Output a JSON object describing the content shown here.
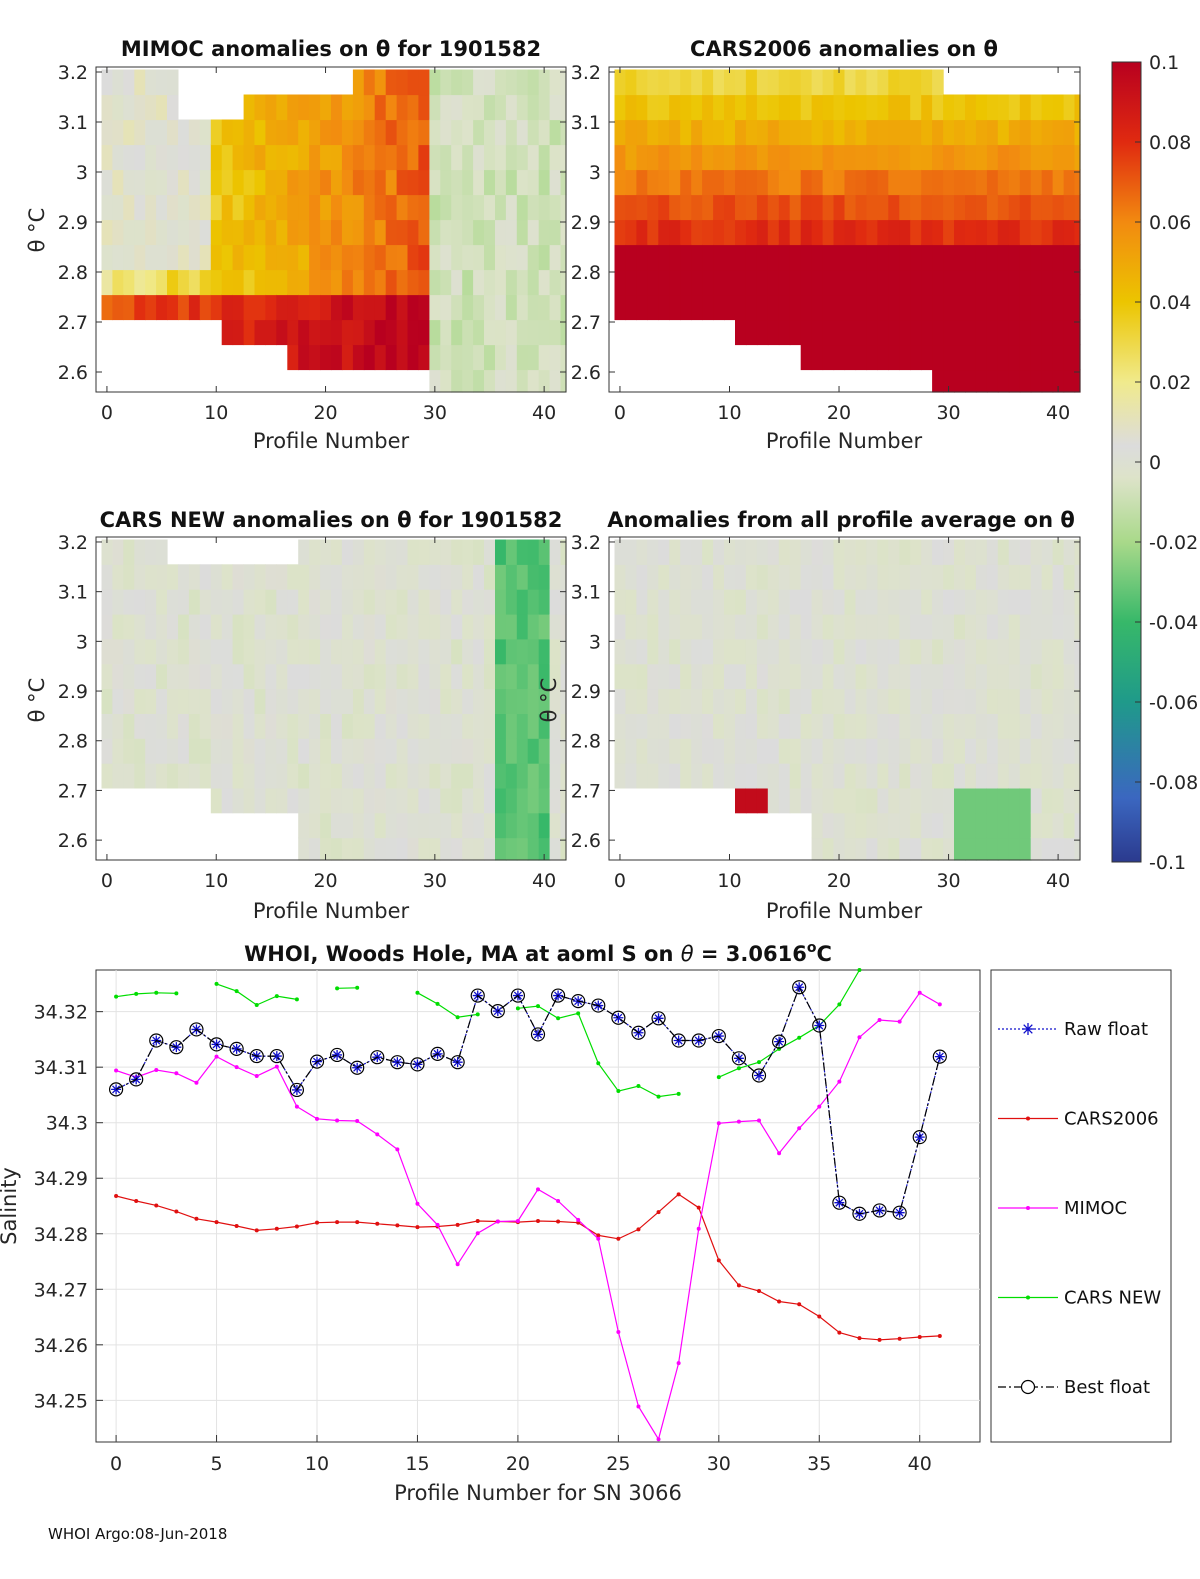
{
  "colorbar": {
    "ticks": [
      "0.1",
      "0.08",
      "0.06",
      "0.04",
      "0.02",
      "0",
      "-0.02",
      "-0.04",
      "-0.06",
      "-0.08",
      "-0.1"
    ],
    "range": [
      -0.1,
      0.1
    ]
  },
  "footer": "WHOI Argo:08-Jun-2018",
  "chart_data": [
    {
      "type": "heatmap",
      "title": "MIMOC anomalies on θ  for 1901582",
      "xlabel": "Profile Number",
      "ylabel": "θ °C",
      "xlim": [
        -1,
        42
      ],
      "ylim": [
        2.56,
        3.21
      ],
      "x_ticks": [
        0,
        10,
        20,
        30,
        40
      ],
      "y_ticks": [
        2.6,
        2.7,
        2.8,
        2.9,
        3,
        3.1,
        3.2
      ],
      "y_ticklabels": [
        "2.6",
        "2.7",
        "2.8",
        "2.9",
        "3",
        "3.1",
        "3.2"
      ],
      "note": "warm (positive) anomalies for profiles 0-29, near zero/slightly negative for 30-42"
    },
    {
      "type": "heatmap",
      "title": "CARS2006 anomalies on θ",
      "xlabel": "Profile Number",
      "ylabel": "",
      "xlim": [
        -1,
        42
      ],
      "ylim": [
        2.56,
        3.21
      ],
      "x_ticks": [
        0,
        10,
        20,
        30,
        40
      ],
      "y_ticks": [
        2.6,
        2.7,
        2.8,
        2.9,
        3,
        3.1,
        3.2
      ],
      "y_ticklabels": [
        "2.6",
        "2.7",
        "2.8",
        "2.9",
        "3",
        "3.1",
        "3.2"
      ],
      "note": "strong positive anomalies increasing toward lower θ"
    },
    {
      "type": "heatmap",
      "title": "CARS NEW anomalies on θ for 1901582",
      "xlabel": "Profile Number",
      "ylabel": "θ °C",
      "xlim": [
        -1,
        42
      ],
      "ylim": [
        2.56,
        3.21
      ],
      "x_ticks": [
        0,
        10,
        20,
        30,
        40
      ],
      "y_ticks": [
        2.6,
        2.7,
        2.8,
        2.9,
        3,
        3.1,
        3.2
      ],
      "y_ticklabels": [
        "2.6",
        "2.7",
        "2.8",
        "2.9",
        "3",
        "3.1",
        "3.2"
      ],
      "note": "near-zero anomalies, negative at profiles 36-41"
    },
    {
      "type": "heatmap",
      "title": "Anomalies from all profile average on θ",
      "xlabel": "Profile Number",
      "ylabel": "θ °C",
      "xlim": [
        -1,
        42
      ],
      "ylim": [
        2.56,
        3.21
      ],
      "x_ticks": [
        0,
        10,
        20,
        30,
        40
      ],
      "y_ticks": [
        2.6,
        2.7,
        2.8,
        2.9,
        3,
        3.1,
        3.2
      ],
      "y_ticklabels": [
        "2.6",
        "2.7",
        "2.8",
        "2.9",
        "3",
        "3.1",
        "3.2"
      ],
      "note": "mostly near zero"
    },
    {
      "type": "line",
      "title_prefix": "WHOI, Woods Hole, MA at aoml S on ",
      "title_theta": "θ",
      "title_value": " = 3.0616",
      "title_sup": "o",
      "title_unit": "C",
      "xlabel": "Profile Number for SN 3066",
      "ylabel": "Salinity",
      "xlim": [
        -1,
        43
      ],
      "ylim": [
        34.2425,
        34.3275
      ],
      "x_ticks": [
        0,
        5,
        10,
        15,
        20,
        25,
        30,
        35,
        40
      ],
      "y_ticks": [
        34.25,
        34.26,
        34.27,
        34.28,
        34.29,
        34.3,
        34.31,
        34.32
      ],
      "y_ticklabels": [
        "34.25",
        "34.26",
        "34.27",
        "34.28",
        "34.29",
        "34.3",
        "34.31",
        "34.32"
      ],
      "series": [
        {
          "name": "Raw float",
          "color": "#1010cc",
          "values": [
            34.306,
            34.3078,
            34.3148,
            34.3136,
            34.3168,
            34.3141,
            34.3133,
            34.312,
            34.312,
            34.3059,
            34.311,
            34.3122,
            34.3099,
            34.3118,
            34.3109,
            34.3105,
            34.3124,
            34.3109,
            34.3229,
            34.3201,
            34.3229,
            34.3159,
            34.3229,
            34.3219,
            34.3211,
            34.3189,
            34.3162,
            34.3188,
            34.3148,
            34.3148,
            34.3156,
            34.3116,
            34.3085,
            34.3146,
            34.3244,
            34.3175,
            34.2856,
            34.2836,
            34.2842,
            34.2838,
            34.2974,
            34.3119
          ]
        },
        {
          "name": "CARS2006",
          "color": "#e01010",
          "values": [
            34.2868,
            34.2859,
            34.2851,
            34.284,
            34.2827,
            34.2821,
            34.2814,
            34.2806,
            34.2809,
            34.2813,
            34.282,
            34.2821,
            34.2821,
            34.2818,
            34.2815,
            34.2812,
            34.2813,
            34.2816,
            34.2823,
            34.2822,
            34.2821,
            34.2823,
            34.2822,
            34.282,
            34.2797,
            34.2791,
            34.2808,
            34.2839,
            34.2871,
            34.2847,
            34.2752,
            34.2707,
            34.2697,
            34.2678,
            34.2673,
            34.2651,
            34.2622,
            34.2612,
            34.2609,
            34.2611,
            34.2614,
            34.2616
          ]
        },
        {
          "name": "MIMOC",
          "color": "#ff00ff",
          "values": [
            34.3094,
            34.3082,
            34.3095,
            34.3089,
            34.3072,
            34.3119,
            34.31,
            34.3084,
            34.3101,
            34.3029,
            34.3007,
            34.3004,
            34.3003,
            34.2979,
            34.2952,
            34.2854,
            34.2816,
            34.2745,
            34.2801,
            34.2822,
            34.2823,
            34.288,
            34.2859,
            34.2825,
            34.2791,
            34.2623,
            34.2489,
            34.243,
            34.2567,
            34.2809,
            34.2999,
            34.3002,
            34.3004,
            34.2945,
            34.299,
            34.3029,
            34.3074,
            34.3154,
            34.3185,
            34.3182,
            34.3234,
            34.3213
          ]
        },
        {
          "name": "CARS NEW",
          "color": "#00dd00",
          "values": [
            34.3227,
            34.3232,
            34.3234,
            34.3233,
            null,
            34.325,
            34.3237,
            34.3212,
            34.3228,
            34.3222,
            null,
            34.3242,
            34.3243,
            null,
            null,
            34.3234,
            34.3214,
            34.319,
            34.3195,
            null,
            34.3206,
            34.321,
            34.3188,
            34.3197,
            34.3107,
            34.3057,
            34.3066,
            34.3047,
            34.3052,
            null,
            34.3082,
            34.3098,
            34.3109,
            34.3133,
            34.3153,
            34.3175,
            34.3213,
            34.3275,
            null,
            null,
            null,
            null
          ]
        },
        {
          "name": "Best float",
          "color": "#000000",
          "values": [
            34.306,
            34.3078,
            34.3148,
            34.3136,
            34.3168,
            34.3141,
            34.3133,
            34.312,
            34.312,
            34.3059,
            34.311,
            34.3122,
            34.3099,
            34.3118,
            34.3109,
            34.3105,
            34.3124,
            34.3109,
            34.3229,
            34.3201,
            34.3229,
            34.3159,
            34.3229,
            34.3219,
            34.3211,
            34.3189,
            34.3162,
            34.3188,
            34.3148,
            34.3148,
            34.3156,
            34.3116,
            34.3085,
            34.3146,
            34.3244,
            34.3175,
            34.2856,
            34.2836,
            34.2842,
            34.2838,
            34.2974,
            34.3119
          ]
        }
      ]
    }
  ]
}
